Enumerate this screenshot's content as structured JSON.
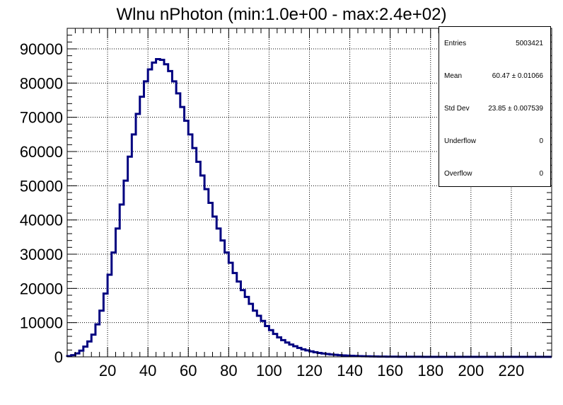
{
  "chart_data": {
    "type": "bar",
    "title": "Wlnu nPhoton (min:1.0e+00 - max:2.4e+02)",
    "xlabel": "",
    "ylabel": "",
    "xlim": [
      0,
      240
    ],
    "ylim": [
      0,
      96000
    ],
    "x_ticks": [
      20,
      40,
      60,
      80,
      100,
      120,
      140,
      160,
      180,
      200,
      220
    ],
    "y_ticks": [
      0,
      10000,
      20000,
      30000,
      40000,
      50000,
      60000,
      70000,
      80000,
      90000
    ],
    "grid": true,
    "line_color": "#000080",
    "bin_width": 2,
    "x": [
      0,
      2,
      4,
      6,
      8,
      10,
      12,
      14,
      16,
      18,
      20,
      22,
      24,
      26,
      28,
      30,
      32,
      34,
      36,
      38,
      40,
      42,
      44,
      46,
      48,
      50,
      52,
      54,
      56,
      58,
      60,
      62,
      64,
      66,
      68,
      70,
      72,
      74,
      76,
      78,
      80,
      82,
      84,
      86,
      88,
      90,
      92,
      94,
      96,
      98,
      100,
      102,
      104,
      106,
      108,
      110,
      112,
      114,
      116,
      118,
      120,
      122,
      124,
      126,
      128,
      130,
      132,
      134,
      136,
      138,
      140,
      142,
      144,
      146,
      148,
      150,
      152,
      154,
      156,
      158,
      160,
      162,
      164,
      166,
      168,
      170,
      172,
      174,
      176,
      178,
      180,
      182,
      184,
      186,
      188,
      190,
      192,
      194,
      196,
      198,
      200,
      202,
      204,
      206,
      208,
      210,
      212,
      214,
      216,
      218,
      220,
      222,
      224,
      226,
      228,
      230,
      232,
      234,
      236,
      238
    ],
    "values": [
      200,
      500,
      1000,
      1800,
      3000,
      4500,
      6500,
      9500,
      13500,
      18500,
      24000,
      30500,
      37500,
      44500,
      51500,
      58500,
      65000,
      71000,
      76000,
      80500,
      84000,
      86000,
      87000,
      86800,
      85500,
      83500,
      80500,
      77000,
      73000,
      69000,
      65000,
      61000,
      57000,
      53000,
      49000,
      45000,
      41000,
      37500,
      34000,
      30500,
      27500,
      24500,
      22000,
      19500,
      17500,
      15500,
      13500,
      12000,
      10500,
      9000,
      7800,
      6700,
      5700,
      4900,
      4200,
      3600,
      3100,
      2600,
      2200,
      1900,
      1600,
      1350,
      1150,
      980,
      830,
      700,
      590,
      500,
      420,
      350,
      300,
      250,
      210,
      175,
      150,
      125,
      105,
      90,
      75,
      62,
      52,
      44,
      37,
      31,
      26,
      22,
      18,
      15,
      12,
      10,
      8,
      7,
      6,
      5,
      4,
      3,
      3,
      2,
      2,
      1,
      1,
      1,
      1,
      0,
      0,
      0,
      0,
      0,
      0,
      0,
      0,
      0,
      0,
      0,
      0,
      0,
      0,
      0,
      0,
      0
    ]
  },
  "stats": {
    "entries_label": "Entries",
    "entries_value": "5003421",
    "mean_label": "Mean",
    "mean_value": "60.47  ± 0.01066",
    "stddev_label": "Std Dev",
    "stddev_value": "23.85  ± 0.007539",
    "underflow_label": "Underflow",
    "underflow_value": "0",
    "overflow_label": "Overflow",
    "overflow_value": "0"
  }
}
